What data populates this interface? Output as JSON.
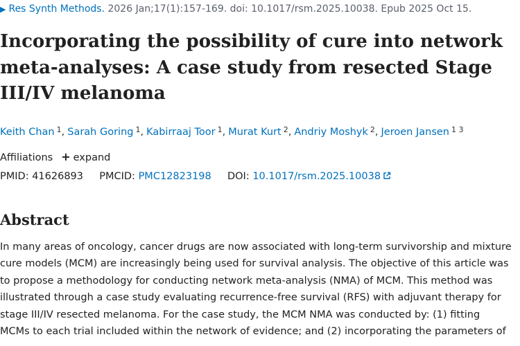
{
  "citation": {
    "toggle_glyph": "▶",
    "journal": "Res Synth Methods.",
    "details": " 2026 Jan;17(1):157-169. doi: 10.1017/rsm.2025.10038. Epub 2025 Oct 15."
  },
  "article": {
    "title_lines": [
      "Incorporating the possibility of cure into network",
      "meta-analyses: A case study from resected Stage",
      "III/IV melanoma"
    ]
  },
  "authors": [
    {
      "name": "Keith Chan",
      "affil": "1"
    },
    {
      "name": "Sarah Goring",
      "affil": "1"
    },
    {
      "name": "Kabirraaj Toor",
      "affil": "1"
    },
    {
      "name": "Murat Kurt",
      "affil": "2"
    },
    {
      "name": "Andriy Moshyk",
      "affil": "2"
    },
    {
      "name": "Jeroen Jansen",
      "affil": "1 3"
    }
  ],
  "affiliations": {
    "label": "Affiliations",
    "expand_label": "expand"
  },
  "identifiers": {
    "pmid_label": "PMID:",
    "pmid": "41626893",
    "pmcid_label": "PMCID:",
    "pmcid": "PMC12823198",
    "doi_label": "DOI:",
    "doi": "10.1017/rsm.2025.10038"
  },
  "abstract": {
    "heading": "Abstract",
    "lines": [
      "In many areas of oncology, cancer drugs are now associated with long-term survivorship and mixture",
      "cure models (MCM) are increasingly being used for survival analysis. The objective of this article was",
      "to propose a methodology for conducting network meta-analysis (NMA) of MCM. This method was",
      "illustrated through a case study evaluating recurrence-free survival (RFS) with adjuvant therapy for",
      "stage III/IV resected melanoma. For the case study, the MCM NMA was conducted by: (1) fitting",
      "MCMs to each trial included within the network of evidence; and (2) incorporating the parameters of"
    ]
  },
  "colors": {
    "link": "#0071bc",
    "text": "#212121",
    "muted": "#5b616b"
  }
}
